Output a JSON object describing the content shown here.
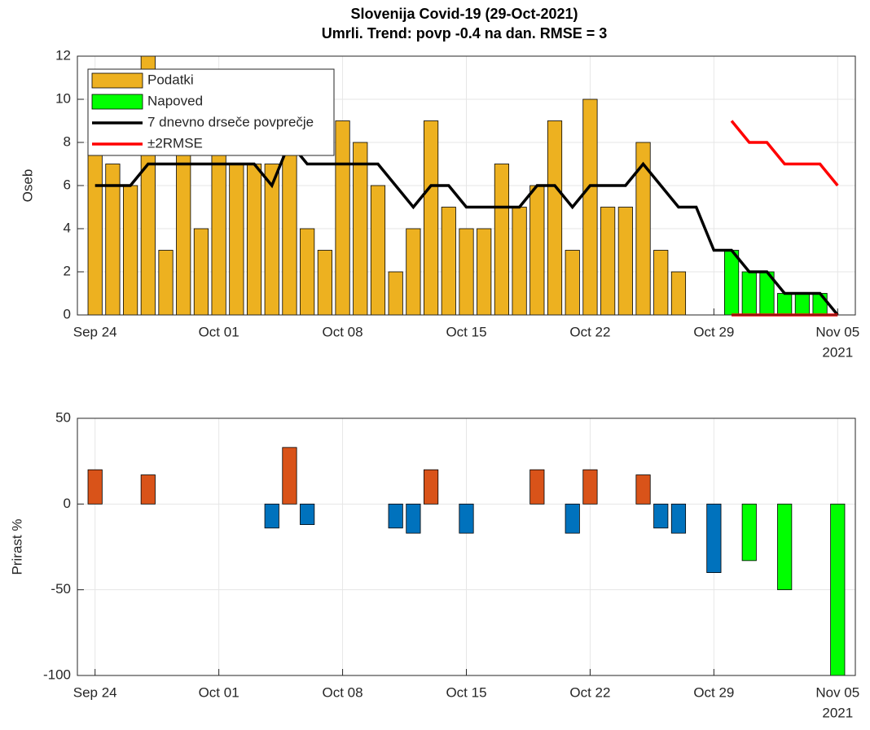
{
  "chart_data": [
    {
      "type": "bar",
      "title": "Slovenija Covid-19 (29-Oct-2021)",
      "subtitle": "Umrli. Trend: povp -0.4 na dan. RMSE = 3",
      "ylabel": "Oseb",
      "x": [
        "2021-09-24",
        "2021-09-25",
        "2021-09-26",
        "2021-09-27",
        "2021-09-28",
        "2021-09-29",
        "2021-09-30",
        "2021-10-01",
        "2021-10-02",
        "2021-10-03",
        "2021-10-04",
        "2021-10-05",
        "2021-10-06",
        "2021-10-07",
        "2021-10-08",
        "2021-10-09",
        "2021-10-10",
        "2021-10-11",
        "2021-10-12",
        "2021-10-13",
        "2021-10-14",
        "2021-10-15",
        "2021-10-16",
        "2021-10-17",
        "2021-10-18",
        "2021-10-19",
        "2021-10-20",
        "2021-10-21",
        "2021-10-22",
        "2021-10-23",
        "2021-10-24",
        "2021-10-25",
        "2021-10-26",
        "2021-10-27",
        "2021-10-28",
        "2021-10-29",
        "2021-10-30",
        "2021-10-31",
        "2021-11-01",
        "2021-11-02",
        "2021-11-03",
        "2021-11-04",
        "2021-11-05"
      ],
      "xlim": [
        "2021-09-23",
        "2021-11-06"
      ],
      "xticks": [
        {
          "value": "2021-09-24",
          "label": "Sep 24"
        },
        {
          "value": "2021-10-01",
          "label": "Oct 01"
        },
        {
          "value": "2021-10-08",
          "label": "Oct 08"
        },
        {
          "value": "2021-10-15",
          "label": "Oct 15"
        },
        {
          "value": "2021-10-22",
          "label": "Oct 22"
        },
        {
          "value": "2021-10-29",
          "label": "Oct 29"
        },
        {
          "value": "2021-11-05",
          "label": "Nov 05"
        }
      ],
      "x_year_label": "2021",
      "ylim": [
        0,
        12
      ],
      "yticks": [
        0,
        2,
        4,
        6,
        8,
        10,
        12
      ],
      "grid": true,
      "legend": "northwest",
      "series": [
        {
          "name": "Podatki",
          "type": "bar",
          "color": "#EDB120",
          "values": [
            8,
            7,
            6,
            12,
            3,
            8,
            4,
            8,
            7,
            7,
            7,
            8,
            4,
            3,
            9,
            8,
            6,
            2,
            4,
            9,
            5,
            4,
            4,
            7,
            5,
            6,
            9,
            3,
            10,
            5,
            5,
            8,
            3,
            2,
            null,
            null,
            null,
            null,
            null,
            null,
            null,
            null,
            null
          ]
        },
        {
          "name": "Napoved",
          "type": "bar",
          "color": "#00FF00",
          "values": [
            null,
            null,
            null,
            null,
            null,
            null,
            null,
            null,
            null,
            null,
            null,
            null,
            null,
            null,
            null,
            null,
            null,
            null,
            null,
            null,
            null,
            null,
            null,
            null,
            null,
            null,
            null,
            null,
            null,
            null,
            null,
            null,
            null,
            null,
            null,
            null,
            3,
            2,
            2,
            1,
            1,
            1,
            null
          ]
        },
        {
          "name": "7 dnevno drseče povprečje",
          "type": "line",
          "color": "#000000",
          "values": [
            6,
            6,
            6,
            7,
            7,
            7,
            7,
            7,
            7,
            7,
            6,
            8,
            7,
            7,
            7,
            7,
            7,
            6,
            5,
            6,
            6,
            5,
            5,
            5,
            5,
            6,
            6,
            5,
            6,
            6,
            6,
            7,
            6,
            5,
            5,
            3,
            3,
            2,
            2,
            1,
            1,
            1,
            0
          ]
        },
        {
          "name": "±2RMSE",
          "type": "band",
          "color": "#FF0000",
          "upper": [
            null,
            null,
            null,
            null,
            null,
            null,
            null,
            null,
            null,
            null,
            null,
            null,
            null,
            null,
            null,
            null,
            null,
            null,
            null,
            null,
            null,
            null,
            null,
            null,
            null,
            null,
            null,
            null,
            null,
            null,
            null,
            null,
            null,
            null,
            null,
            null,
            9,
            8,
            8,
            7,
            7,
            7,
            6
          ],
          "lower": [
            null,
            null,
            null,
            null,
            null,
            null,
            null,
            null,
            null,
            null,
            null,
            null,
            null,
            null,
            null,
            null,
            null,
            null,
            null,
            null,
            null,
            null,
            null,
            null,
            null,
            null,
            null,
            null,
            null,
            null,
            null,
            null,
            null,
            null,
            null,
            null,
            0,
            0,
            0,
            0,
            0,
            0,
            0
          ]
        }
      ]
    },
    {
      "type": "bar",
      "ylabel": "Prirast %",
      "x": [
        "2021-09-24",
        "2021-09-25",
        "2021-09-26",
        "2021-09-27",
        "2021-09-28",
        "2021-09-29",
        "2021-09-30",
        "2021-10-01",
        "2021-10-02",
        "2021-10-03",
        "2021-10-04",
        "2021-10-05",
        "2021-10-06",
        "2021-10-07",
        "2021-10-08",
        "2021-10-09",
        "2021-10-10",
        "2021-10-11",
        "2021-10-12",
        "2021-10-13",
        "2021-10-14",
        "2021-10-15",
        "2021-10-16",
        "2021-10-17",
        "2021-10-18",
        "2021-10-19",
        "2021-10-20",
        "2021-10-21",
        "2021-10-22",
        "2021-10-23",
        "2021-10-24",
        "2021-10-25",
        "2021-10-26",
        "2021-10-27",
        "2021-10-28",
        "2021-10-29",
        "2021-10-30",
        "2021-10-31",
        "2021-11-01",
        "2021-11-02",
        "2021-11-03",
        "2021-11-04",
        "2021-11-05"
      ],
      "xlim": [
        "2021-09-23",
        "2021-11-06"
      ],
      "xticks": [
        {
          "value": "2021-09-24",
          "label": "Sep 24"
        },
        {
          "value": "2021-10-01",
          "label": "Oct 01"
        },
        {
          "value": "2021-10-08",
          "label": "Oct 08"
        },
        {
          "value": "2021-10-15",
          "label": "Oct 15"
        },
        {
          "value": "2021-10-22",
          "label": "Oct 22"
        },
        {
          "value": "2021-10-29",
          "label": "Oct 29"
        },
        {
          "value": "2021-11-05",
          "label": "Nov 05"
        }
      ],
      "x_year_label": "2021",
      "ylim": [
        -100,
        50
      ],
      "yticks": [
        -100,
        -50,
        0,
        50
      ],
      "grid": true,
      "series": [
        {
          "type": "bar",
          "color": "#D95319",
          "values": [
            20,
            null,
            null,
            17,
            null,
            null,
            null,
            null,
            null,
            null,
            null,
            33,
            null,
            null,
            null,
            null,
            null,
            null,
            null,
            20,
            null,
            null,
            null,
            null,
            null,
            20,
            null,
            null,
            20,
            null,
            null,
            17,
            null,
            null,
            null,
            null,
            null,
            null,
            null,
            null,
            null,
            null,
            null
          ]
        },
        {
          "type": "bar",
          "color": "#0072BD",
          "values": [
            null,
            null,
            null,
            null,
            null,
            null,
            null,
            null,
            null,
            null,
            -14,
            null,
            -12,
            null,
            null,
            null,
            null,
            -14,
            -17,
            null,
            null,
            -17,
            null,
            null,
            null,
            null,
            null,
            -17,
            null,
            null,
            null,
            null,
            -14,
            -17,
            null,
            -40,
            null,
            null,
            null,
            null,
            null,
            null,
            null
          ]
        },
        {
          "type": "bar",
          "color": "#00FF00",
          "values": [
            null,
            null,
            null,
            null,
            null,
            null,
            null,
            null,
            null,
            null,
            null,
            null,
            null,
            null,
            null,
            null,
            null,
            null,
            null,
            null,
            null,
            null,
            null,
            null,
            null,
            null,
            null,
            null,
            null,
            null,
            null,
            null,
            null,
            null,
            null,
            null,
            null,
            -33,
            null,
            -50,
            null,
            null,
            -100
          ]
        }
      ]
    }
  ]
}
